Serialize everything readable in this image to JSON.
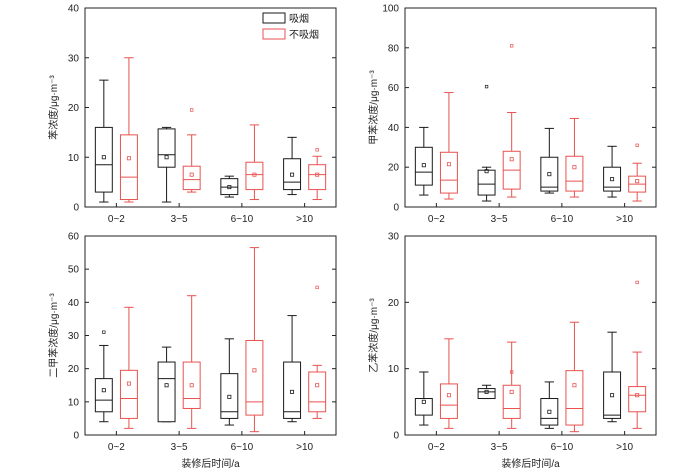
{
  "chart_data": [
    {
      "type": "box",
      "ylabel": "苯浓度/μg·m⁻³",
      "xlabel": "",
      "ylim": [
        0,
        40
      ],
      "yticks": [
        0,
        10,
        20,
        30,
        40
      ],
      "categories": [
        "0~2",
        "3~5",
        "6~10",
        ">10"
      ],
      "legend": {
        "placement": "top-right",
        "entries": [
          "吸烟",
          "不吸烟"
        ]
      },
      "series": [
        {
          "name": "吸烟",
          "color": "#1a1a1a",
          "boxes": [
            {
              "whisker_low": 1.0,
              "q1": 3.0,
              "median": 8.5,
              "q3": 16.0,
              "whisker_high": 25.5,
              "mean": 10.0,
              "outliers": []
            },
            {
              "whisker_low": 1.0,
              "q1": 8.0,
              "median": 10.5,
              "q3": 15.7,
              "whisker_high": 16.0,
              "mean": 10.0,
              "outliers": []
            },
            {
              "whisker_low": 2.0,
              "q1": 2.5,
              "median": 4.0,
              "q3": 5.7,
              "whisker_high": 6.2,
              "mean": 4.0,
              "outliers": []
            },
            {
              "whisker_low": 2.5,
              "q1": 3.5,
              "median": 5.0,
              "q3": 9.7,
              "whisker_high": 14.0,
              "mean": 6.5,
              "outliers": []
            }
          ]
        },
        {
          "name": "不吸烟",
          "color": "#e8524f",
          "boxes": [
            {
              "whisker_low": 1.0,
              "q1": 1.5,
              "median": 6.0,
              "q3": 14.5,
              "whisker_high": 30.0,
              "mean": 9.8,
              "outliers": []
            },
            {
              "whisker_low": 3.0,
              "q1": 3.5,
              "median": 5.5,
              "q3": 8.2,
              "whisker_high": 14.5,
              "mean": 6.5,
              "outliers": [
                19.5
              ]
            },
            {
              "whisker_low": 1.5,
              "q1": 3.5,
              "median": 6.5,
              "q3": 9.0,
              "whisker_high": 16.5,
              "mean": 6.5,
              "outliers": []
            },
            {
              "whisker_low": 1.5,
              "q1": 3.5,
              "median": 6.5,
              "q3": 8.5,
              "whisker_high": 10.2,
              "mean": 6.5,
              "outliers": [
                11.5
              ]
            }
          ]
        }
      ]
    },
    {
      "type": "box",
      "ylabel": "甲苯浓度/μg·m⁻³",
      "xlabel": "",
      "ylim": [
        0,
        100
      ],
      "yticks": [
        0,
        20,
        40,
        60,
        80,
        100
      ],
      "categories": [
        "0~2",
        "3~5",
        "6~10",
        ">10"
      ],
      "series": [
        {
          "name": "吸烟",
          "color": "#1a1a1a",
          "boxes": [
            {
              "whisker_low": 6.0,
              "q1": 11.0,
              "median": 17.5,
              "q3": 30.0,
              "whisker_high": 40.0,
              "mean": 21.0,
              "outliers": []
            },
            {
              "whisker_low": 3.0,
              "q1": 6.0,
              "median": 11.5,
              "q3": 18.5,
              "whisker_high": 20.0,
              "mean": 18.0,
              "outliers": [
                60.5
              ]
            },
            {
              "whisker_low": 7.0,
              "q1": 8.0,
              "median": 10.0,
              "q3": 25.0,
              "whisker_high": 39.5,
              "mean": 16.5,
              "outliers": []
            },
            {
              "whisker_low": 5.0,
              "q1": 8.0,
              "median": 10.0,
              "q3": 20.0,
              "whisker_high": 30.5,
              "mean": 14.0,
              "outliers": []
            }
          ]
        },
        {
          "name": "不吸烟",
          "color": "#e8524f",
          "boxes": [
            {
              "whisker_low": 4.0,
              "q1": 7.0,
              "median": 13.5,
              "q3": 27.5,
              "whisker_high": 57.5,
              "mean": 21.5,
              "outliers": []
            },
            {
              "whisker_low": 5.0,
              "q1": 9.0,
              "median": 18.5,
              "q3": 28.0,
              "whisker_high": 47.5,
              "mean": 24.0,
              "outliers": [
                81.0
              ]
            },
            {
              "whisker_low": 5.0,
              "q1": 8.0,
              "median": 13.0,
              "q3": 25.5,
              "whisker_high": 44.5,
              "mean": 20.0,
              "outliers": []
            },
            {
              "whisker_low": 3.0,
              "q1": 7.5,
              "median": 11.5,
              "q3": 15.5,
              "whisker_high": 22.0,
              "mean": 13.0,
              "outliers": [
                31.0
              ]
            }
          ]
        }
      ]
    },
    {
      "type": "box",
      "ylabel": "二甲苯浓度/μg·m⁻³",
      "xlabel": "装修后时间/a",
      "ylim": [
        0,
        60
      ],
      "yticks": [
        0,
        10,
        20,
        30,
        40,
        50,
        60
      ],
      "categories": [
        "0~2",
        "3~5",
        "6~10",
        ">10"
      ],
      "series": [
        {
          "name": "吸烟",
          "color": "#1a1a1a",
          "boxes": [
            {
              "whisker_low": 4.0,
              "q1": 7.0,
              "median": 10.5,
              "q3": 17.0,
              "whisker_high": 27.0,
              "mean": 13.5,
              "outliers": [
                31.0
              ]
            },
            {
              "whisker_low": 4.0,
              "q1": 4.0,
              "median": 17.0,
              "q3": 22.0,
              "whisker_high": 26.5,
              "mean": 15.0,
              "outliers": []
            },
            {
              "whisker_low": 3.0,
              "q1": 5.0,
              "median": 7.0,
              "q3": 18.5,
              "whisker_high": 29.0,
              "mean": 11.5,
              "outliers": []
            },
            {
              "whisker_low": 4.0,
              "q1": 5.0,
              "median": 7.0,
              "q3": 22.0,
              "whisker_high": 36.0,
              "mean": 13.0,
              "outliers": []
            }
          ]
        },
        {
          "name": "不吸烟",
          "color": "#e8524f",
          "boxes": [
            {
              "whisker_low": 2.0,
              "q1": 5.0,
              "median": 11.0,
              "q3": 19.5,
              "whisker_high": 38.5,
              "mean": 15.5,
              "outliers": []
            },
            {
              "whisker_low": 2.0,
              "q1": 8.0,
              "median": 11.0,
              "q3": 22.0,
              "whisker_high": 42.0,
              "mean": 15.0,
              "outliers": []
            },
            {
              "whisker_low": 1.0,
              "q1": 6.0,
              "median": 10.0,
              "q3": 28.5,
              "whisker_high": 56.5,
              "mean": 19.5,
              "outliers": []
            },
            {
              "whisker_low": 5.0,
              "q1": 7.0,
              "median": 10.0,
              "q3": 19.0,
              "whisker_high": 21.0,
              "mean": 15.0,
              "outliers": [
                44.5
              ]
            }
          ]
        }
      ]
    },
    {
      "type": "box",
      "ylabel": "乙苯浓度/μg·m⁻³",
      "xlabel": "装修后时间/a",
      "ylim": [
        0,
        30
      ],
      "yticks": [
        0,
        10,
        20,
        30
      ],
      "categories": [
        "0~2",
        "3~5",
        "6~10",
        ">10"
      ],
      "series": [
        {
          "name": "吸烟",
          "color": "#1a1a1a",
          "boxes": [
            {
              "whisker_low": 1.5,
              "q1": 3.0,
              "median": 5.5,
              "q3": 5.5,
              "whisker_high": 9.5,
              "mean": 5.0,
              "outliers": []
            },
            {
              "whisker_low": 5.5,
              "q1": 5.5,
              "median": 6.5,
              "q3": 7.0,
              "whisker_high": 7.5,
              "mean": 6.5,
              "outliers": []
            },
            {
              "whisker_low": 1.0,
              "q1": 1.5,
              "median": 2.5,
              "q3": 5.5,
              "whisker_high": 8.0,
              "mean": 3.5,
              "outliers": []
            },
            {
              "whisker_low": 2.0,
              "q1": 2.5,
              "median": 3.0,
              "q3": 9.5,
              "whisker_high": 15.5,
              "mean": 6.0,
              "outliers": []
            }
          ]
        },
        {
          "name": "不吸烟",
          "color": "#e8524f",
          "boxes": [
            {
              "whisker_low": 1.0,
              "q1": 2.5,
              "median": 4.5,
              "q3": 7.7,
              "whisker_high": 14.5,
              "mean": 6.0,
              "outliers": []
            },
            {
              "whisker_low": 1.0,
              "q1": 2.5,
              "median": 4.0,
              "q3": 7.5,
              "whisker_high": 14.0,
              "mean": 6.5,
              "outliers": [
                9.5
              ]
            },
            {
              "whisker_low": 0.5,
              "q1": 1.5,
              "median": 4.0,
              "q3": 9.7,
              "whisker_high": 17.0,
              "mean": 7.5,
              "outliers": []
            },
            {
              "whisker_low": 1.0,
              "q1": 3.5,
              "median": 6.0,
              "q3": 7.3,
              "whisker_high": 12.5,
              "mean": 6.0,
              "outliers": [
                23.0
              ]
            }
          ]
        }
      ]
    }
  ]
}
